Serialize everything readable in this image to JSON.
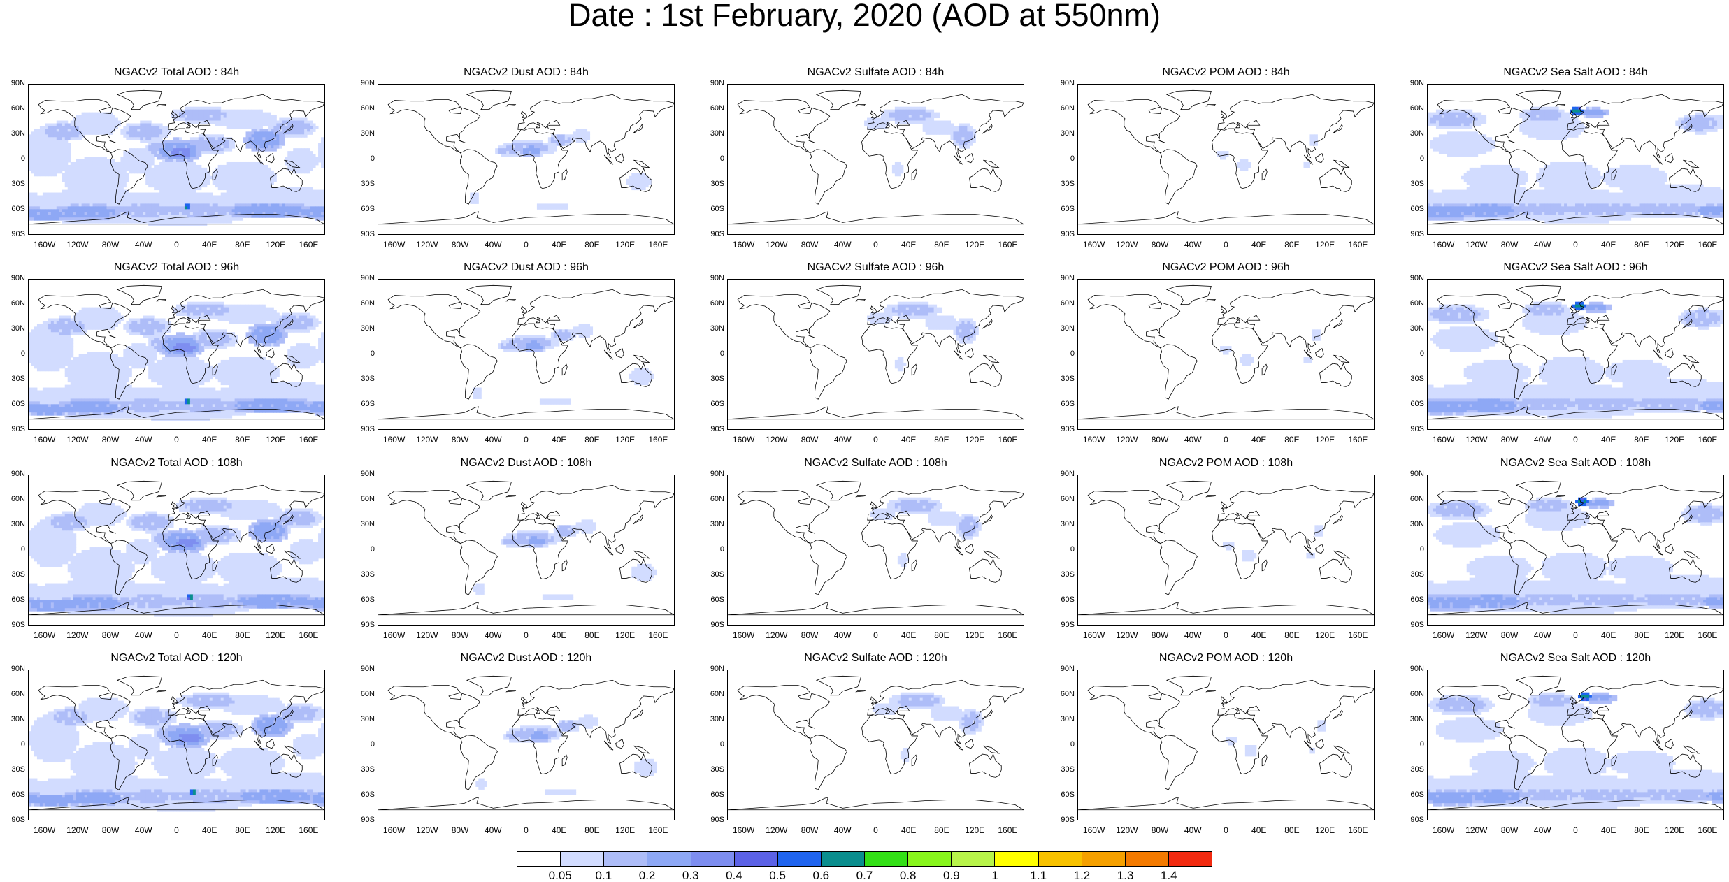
{
  "title": "Date : 1st February, 2020 (AOD at 550nm)",
  "rows": [
    {
      "hour": "84h",
      "panels": [
        {
          "title": "NGACv2 Total AOD : 84h",
          "species": "total"
        },
        {
          "title": "NGACv2 Dust AOD : 84h",
          "species": "dust"
        },
        {
          "title": "NGACv2 Sulfate AOD : 84h",
          "species": "sulfate"
        },
        {
          "title": "NGACv2 POM AOD : 84h",
          "species": "pom"
        },
        {
          "title": "NGACv2 Sea Salt AOD : 84h",
          "species": "seasalt"
        }
      ]
    },
    {
      "hour": "96h",
      "panels": [
        {
          "title": "NGACv2 Total AOD : 96h",
          "species": "total"
        },
        {
          "title": "NGACv2 Dust AOD : 96h",
          "species": "dust"
        },
        {
          "title": "NGACv2 Sulfate AOD : 96h",
          "species": "sulfate"
        },
        {
          "title": "NGACv2 POM AOD : 96h",
          "species": "pom"
        },
        {
          "title": "NGACv2 Sea Salt AOD : 96h",
          "species": "seasalt"
        }
      ]
    },
    {
      "hour": "108h",
      "panels": [
        {
          "title": "NGACv2 Total AOD : 108h",
          "species": "total"
        },
        {
          "title": "NGACv2 Dust AOD : 108h",
          "species": "dust"
        },
        {
          "title": "NGACv2 Sulfate AOD : 108h",
          "species": "sulfate"
        },
        {
          "title": "NGACv2 POM AOD : 108h",
          "species": "pom"
        },
        {
          "title": "NGACv2 Sea Salt AOD : 108h",
          "species": "seasalt"
        }
      ]
    },
    {
      "hour": "120h",
      "panels": [
        {
          "title": "NGACv2 Total AOD : 120h",
          "species": "total"
        },
        {
          "title": "NGACv2 Dust AOD : 120h",
          "species": "dust"
        },
        {
          "title": "NGACv2 Sulfate AOD : 120h",
          "species": "sulfate"
        },
        {
          "title": "NGACv2 POM AOD : 120h",
          "species": "pom"
        },
        {
          "title": "NGACv2 Sea Salt  AOD : 120h",
          "species": "seasalt"
        }
      ]
    }
  ],
  "lat_labels": [
    "90N",
    "60N",
    "30N",
    "0",
    "30S",
    "60S",
    "90S"
  ],
  "lon_labels": [
    "160W",
    "120W",
    "80W",
    "40W",
    "0",
    "40E",
    "80E",
    "120E",
    "160E"
  ],
  "colorbar": {
    "labels": [
      "0.05",
      "0.1",
      "0.2",
      "0.3",
      "0.4",
      "0.5",
      "0.6",
      "0.7",
      "0.8",
      "0.9",
      "1",
      "1.1",
      "1.2",
      "1.3",
      "1.4"
    ],
    "colors": [
      "#ffffff",
      "#d2dcff",
      "#aebdf8",
      "#8ea8f5",
      "#7e8ef0",
      "#5c62e6",
      "#1f64ef",
      "#0a8e8e",
      "#33e016",
      "#88f51c",
      "#b8f44a",
      "#ffff00",
      "#f8c200",
      "#f5a000",
      "#f37a00",
      "#f22a10"
    ]
  }
}
